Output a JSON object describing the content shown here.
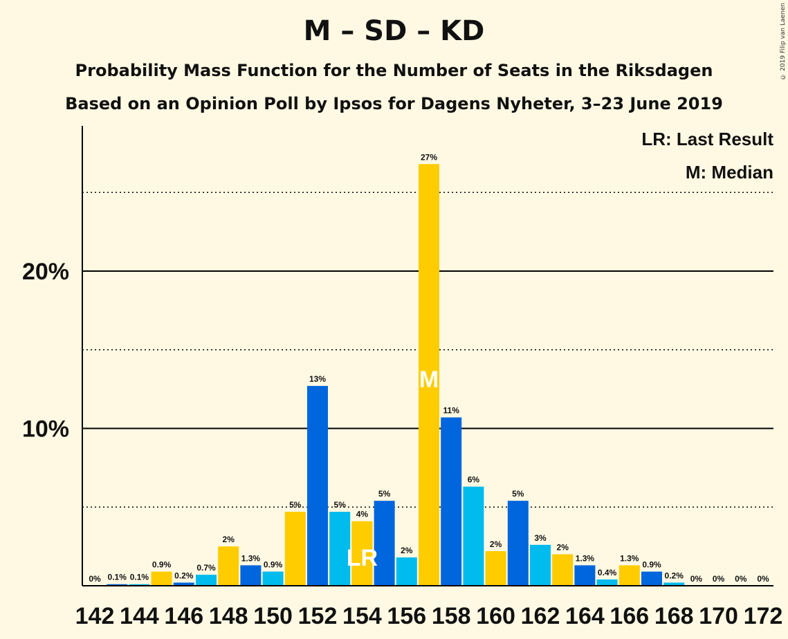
{
  "title": "M – SD – KD",
  "subtitle": "Probability Mass Function for the Number of Seats in the Riksdagen",
  "subtitle2": "Based on an Opinion Poll by Ipsos for Dagens Nyheter, 3–23 June 2019",
  "copyright": "© 2019 Filip van Laenen",
  "legend": {
    "lr": "LR: Last Result",
    "m": "M: Median",
    "placement": "top-right"
  },
  "markers": {
    "last_result_label": "LR",
    "last_result_seats": 154,
    "median_label": "M",
    "median_seats": 157
  },
  "colors": {
    "background": "#fff9e3",
    "series": [
      "#ffcc00",
      "#0066dd",
      "#00bbee"
    ],
    "axis": "#000000",
    "marker_text": "#ffffff"
  },
  "chart_data": {
    "type": "bar",
    "x": [
      142,
      143,
      144,
      145,
      146,
      147,
      148,
      149,
      150,
      151,
      152,
      153,
      154,
      155,
      156,
      157,
      158,
      159,
      160,
      161,
      162,
      163,
      164,
      165,
      166,
      167,
      168,
      169,
      170,
      171,
      172
    ],
    "values": [
      0,
      0.1,
      0.1,
      0.9,
      0.2,
      0.7,
      2.5,
      1.3,
      0.9,
      4.7,
      12.7,
      4.7,
      4.1,
      5.4,
      1.8,
      26.8,
      10.7,
      6.3,
      2.2,
      5.4,
      2.6,
      2.0,
      1.3,
      0.4,
      1.3,
      0.9,
      0.2,
      0,
      0,
      0,
      0
    ],
    "labels": [
      "0%",
      "0.1%",
      "0.1%",
      "0.9%",
      "0.2%",
      "0.7%",
      "2%",
      "1.3%",
      "0.9%",
      "5%",
      "13%",
      "5%",
      "4%",
      "5%",
      "2%",
      "27%",
      "11%",
      "6%",
      "2%",
      "5%",
      "3%",
      "2%",
      "1.3%",
      "0.4%",
      "1.3%",
      "0.9%",
      "0.2%",
      "0%",
      "0%",
      "0%",
      "0%"
    ],
    "xticks": [
      "142",
      "144",
      "146",
      "148",
      "150",
      "152",
      "154",
      "156",
      "158",
      "160",
      "162",
      "164",
      "166",
      "168",
      "170",
      "172"
    ],
    "yticks": [
      "10%",
      "20%"
    ],
    "ylim": [
      0,
      29
    ],
    "grid_solid": [
      10,
      20
    ],
    "grid_dotted": [
      5,
      15,
      25
    ]
  }
}
